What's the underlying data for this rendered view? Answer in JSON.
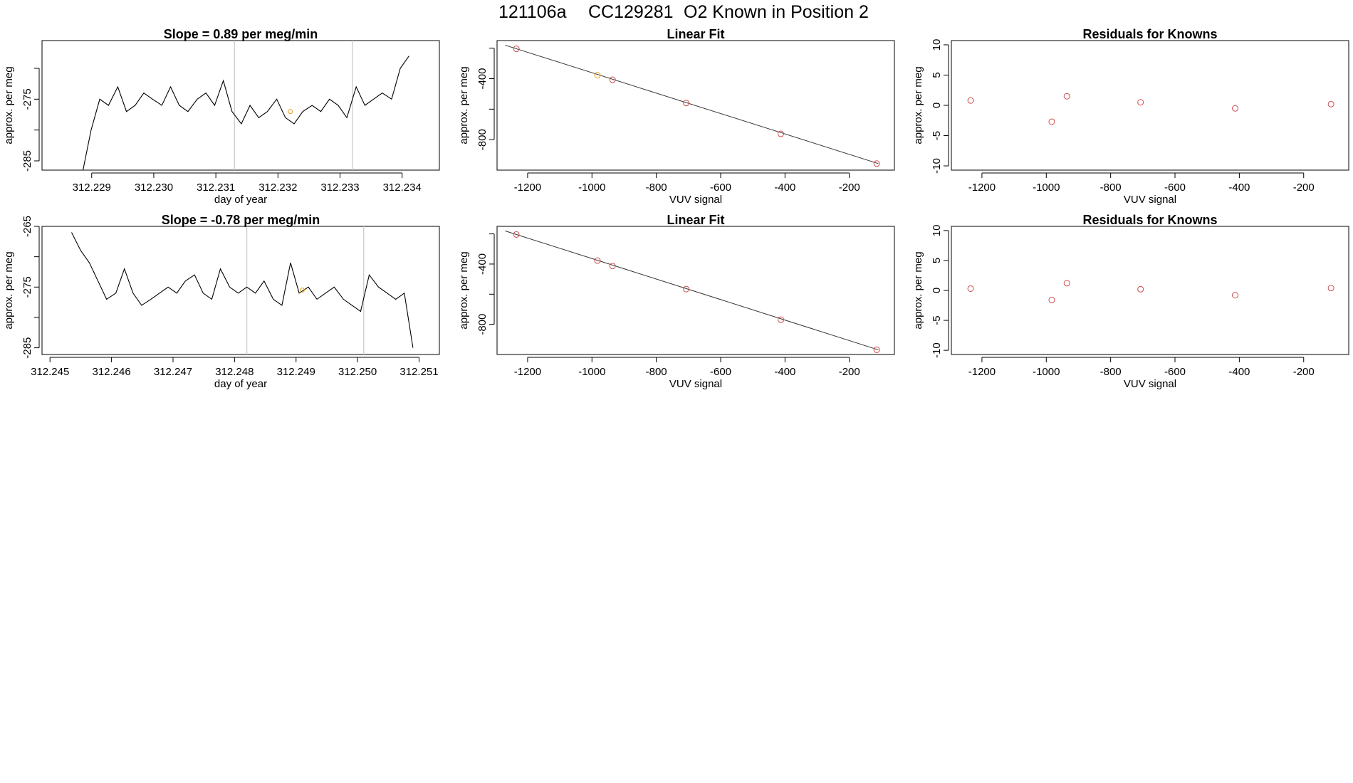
{
  "page": {
    "run_id": "121106a",
    "cylinder_id": "CC129281",
    "description": "O2 Known in Position  2"
  },
  "colors": {
    "trace": "#000000",
    "grid_vline": "#c8c8c8",
    "point_red": "#d04a4a",
    "point_orange": "#e8a020",
    "axis": "#000000"
  },
  "chart_data": [
    {
      "type": "line",
      "title": "Slope =  0.89  per meg/min",
      "xlabel": "day of year",
      "ylabel": "approx. per meg",
      "xlim": [
        312.2282,
        312.2346
      ],
      "ylim": [
        -286.5,
        -265.5
      ],
      "xticks": [
        312.229,
        312.23,
        312.231,
        312.232,
        312.233,
        312.234
      ],
      "xtick_labels": [
        "312.229",
        "312.230",
        "312.231",
        "312.232",
        "312.233",
        "312.234"
      ],
      "yticks": [
        -285,
        -280,
        -275,
        -270
      ],
      "ytick_labels": [
        "-285",
        "",
        "-275",
        ""
      ],
      "vlines": [
        312.2313,
        312.2332
      ],
      "marker": {
        "x": 312.2322,
        "y": -277,
        "color": "orange"
      },
      "x": [
        312.22885,
        312.22899,
        312.22913,
        312.22927,
        312.22942,
        312.22956,
        312.2297,
        312.22984,
        312.22998,
        312.23013,
        312.23027,
        312.23041,
        312.23055,
        312.2307,
        312.23084,
        312.23098,
        312.23112,
        312.23126,
        312.23141,
        312.23155,
        312.23169,
        312.23183,
        312.23198,
        312.23212,
        312.23226,
        312.2324,
        312.23255,
        312.23269,
        312.23283,
        312.23297,
        312.23311,
        312.23326,
        312.2334,
        312.23354,
        312.23368,
        312.23383,
        312.23397,
        312.23411
      ],
      "y": [
        -287,
        -280,
        -275,
        -276,
        -273,
        -277,
        -276,
        -274,
        -275,
        -276,
        -273,
        -276,
        -277,
        -275,
        -274,
        -276,
        -272,
        -277,
        -279,
        -276,
        -278,
        -277,
        -275,
        -278,
        -279,
        -277,
        -276,
        -277,
        -275,
        -276,
        -278,
        -273,
        -276,
        -275,
        -274,
        -275,
        -270,
        -268
      ]
    },
    {
      "type": "scatter",
      "title": "Linear Fit",
      "xlabel": "VUV signal",
      "ylabel": "approx. per meg",
      "xlim": [
        -1295,
        -60
      ],
      "ylim": [
        -1000,
        -150
      ],
      "xticks": [
        -1200,
        -1000,
        -800,
        -600,
        -400,
        -200
      ],
      "yticks": [
        -800,
        -600,
        -400,
        -200
      ],
      "ytick_labels": [
        "-800",
        "",
        "-400",
        ""
      ],
      "points": [
        {
          "x": -1235,
          "y": -204,
          "color": "red"
        },
        {
          "x": -983,
          "y": -377,
          "color": "orange"
        },
        {
          "x": -936,
          "y": -407,
          "color": "red"
        },
        {
          "x": -707,
          "y": -560,
          "color": "red"
        },
        {
          "x": -413,
          "y": -762,
          "color": "red"
        },
        {
          "x": -115,
          "y": -957,
          "color": "red"
        }
      ],
      "fit_line": {
        "x": [
          -1270,
          -110
        ],
        "y": [
          -180,
          -957
        ]
      }
    },
    {
      "type": "scatter",
      "title": "Residuals for Knowns",
      "xlabel": "VUV signal",
      "ylabel": "approx. per meg",
      "xlim": [
        -1295,
        -60
      ],
      "ylim": [
        -10.7,
        10.7
      ],
      "xticks": [
        -1200,
        -1000,
        -800,
        -600,
        -400,
        -200
      ],
      "yticks": [
        -10,
        -5,
        0,
        5,
        10
      ],
      "points": [
        {
          "x": -1235,
          "y": 0.8,
          "color": "red"
        },
        {
          "x": -983,
          "y": -2.7,
          "color": "red"
        },
        {
          "x": -936,
          "y": 1.5,
          "color": "red"
        },
        {
          "x": -707,
          "y": 0.5,
          "color": "red"
        },
        {
          "x": -413,
          "y": -0.5,
          "color": "red"
        },
        {
          "x": -115,
          "y": 0.2,
          "color": "red"
        }
      ]
    },
    {
      "type": "line",
      "title": "Slope =  -0.78  per meg/min",
      "xlabel": "day of year",
      "ylabel": "approx. per meg",
      "xlim": [
        312.24487,
        312.25133
      ],
      "ylim": [
        -286.1,
        -265
      ],
      "xticks": [
        312.245,
        312.246,
        312.247,
        312.248,
        312.249,
        312.25,
        312.251
      ],
      "xtick_labels": [
        "312.245",
        "312.246",
        "312.247",
        "312.248",
        "312.249",
        "312.250",
        "312.251"
      ],
      "yticks": [
        -285,
        -280,
        -275,
        -270,
        -265
      ],
      "ytick_labels": [
        "-285",
        "",
        "-275",
        "",
        "-265"
      ],
      "vlines": [
        312.2482,
        312.2501
      ],
      "marker": {
        "x": 312.2491,
        "y": -275.5,
        "color": "orange"
      },
      "x": [
        312.24535,
        312.2455,
        312.24564,
        312.24578,
        312.24592,
        312.24607,
        312.24621,
        312.24635,
        312.24649,
        312.24664,
        312.24678,
        312.24692,
        312.24706,
        312.2472,
        312.24735,
        312.24749,
        312.24763,
        312.24777,
        312.24792,
        312.24806,
        312.2482,
        312.24834,
        312.24848,
        312.24863,
        312.24877,
        312.24891,
        312.24905,
        312.2492,
        312.24934,
        312.24948,
        312.24962,
        312.24977,
        312.24991,
        312.25005,
        312.25019,
        312.25034,
        312.25048,
        312.25062,
        312.25076,
        312.2509
      ],
      "y": [
        -266,
        -269,
        -271,
        -274,
        -277,
        -276,
        -272,
        -276,
        -278,
        -277,
        -276,
        -275,
        -276,
        -274,
        -273,
        -276,
        -277,
        -272,
        -275,
        -276,
        -275,
        -276,
        -274,
        -277,
        -278,
        -271,
        -276,
        -275,
        -277,
        -276,
        -275,
        -277,
        -278,
        -279,
        -273,
        -275,
        -276,
        -277,
        -276,
        -285
      ]
    },
    {
      "type": "scatter",
      "title": "Linear Fit",
      "xlabel": "VUV signal",
      "ylabel": "approx. per meg",
      "xlim": [
        -1295,
        -60
      ],
      "ylim": [
        -1000,
        -150
      ],
      "xticks": [
        -1200,
        -1000,
        -800,
        -600,
        -400,
        -200
      ],
      "yticks": [
        -800,
        -600,
        -400,
        -200
      ],
      "ytick_labels": [
        "-800",
        "",
        "-400",
        ""
      ],
      "points": [
        {
          "x": -1235,
          "y": -204,
          "color": "red"
        },
        {
          "x": -983,
          "y": -377,
          "color": "red"
        },
        {
          "x": -936,
          "y": -413,
          "color": "red"
        },
        {
          "x": -707,
          "y": -566,
          "color": "red"
        },
        {
          "x": -413,
          "y": -769,
          "color": "red"
        },
        {
          "x": -115,
          "y": -969,
          "color": "red"
        }
      ],
      "fit_line": {
        "x": [
          -1270,
          -110
        ],
        "y": [
          -180,
          -969
        ]
      }
    },
    {
      "type": "scatter",
      "title": "Residuals for Knowns",
      "xlabel": "VUV signal",
      "ylabel": "approx. per meg",
      "xlim": [
        -1295,
        -60
      ],
      "ylim": [
        -10.7,
        10.7
      ],
      "xticks": [
        -1200,
        -1000,
        -800,
        -600,
        -400,
        -200
      ],
      "yticks": [
        -10,
        -5,
        0,
        5,
        10
      ],
      "points": [
        {
          "x": -1235,
          "y": 0.3,
          "color": "red"
        },
        {
          "x": -983,
          "y": -1.6,
          "color": "red"
        },
        {
          "x": -936,
          "y": 1.2,
          "color": "red"
        },
        {
          "x": -707,
          "y": 0.2,
          "color": "red"
        },
        {
          "x": -413,
          "y": -0.8,
          "color": "red"
        },
        {
          "x": -115,
          "y": 0.4,
          "color": "red"
        }
      ]
    }
  ]
}
